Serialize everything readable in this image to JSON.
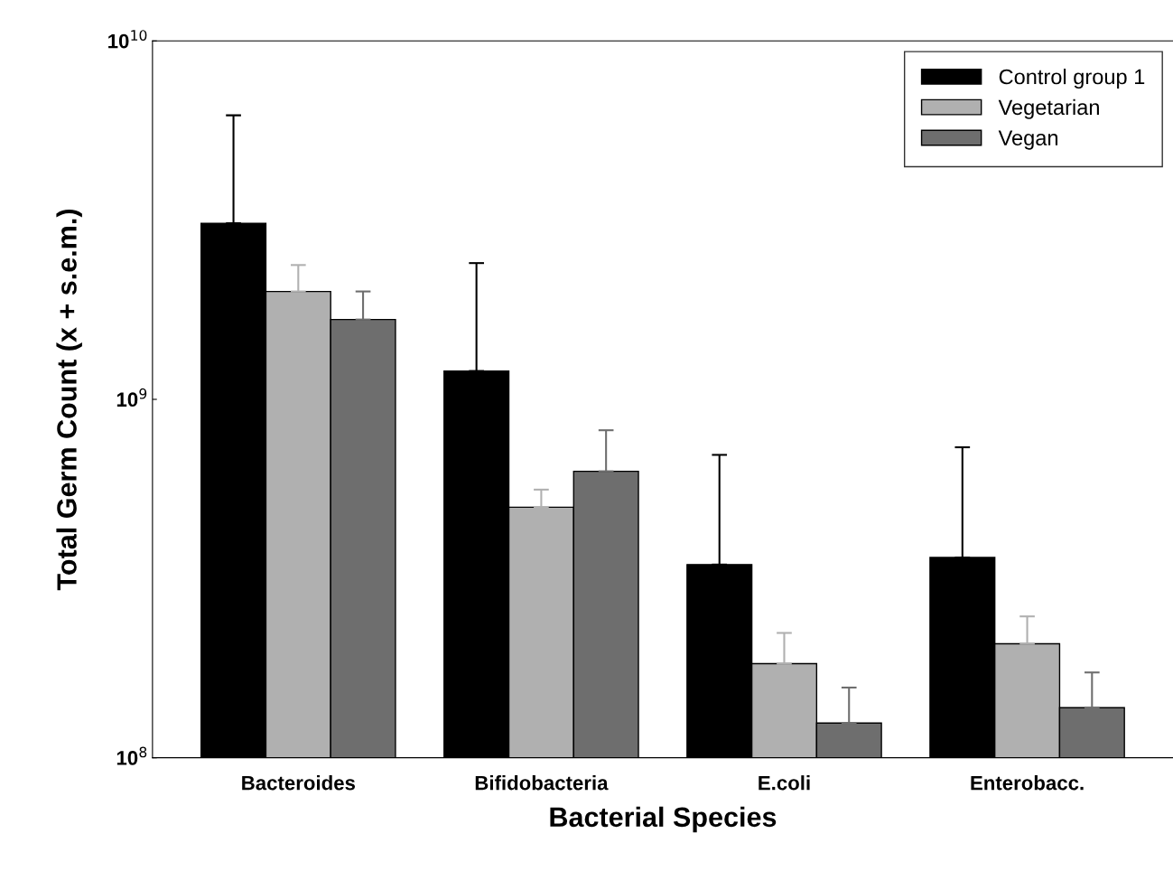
{
  "chart_data": {
    "type": "bar",
    "xlabel": "Bacterial Species",
    "ylabel": "Total Germ Count (x + s.e.m.)",
    "categories": [
      "Bacteroides",
      "Bifidobacteria",
      "E.coli",
      "Enterobacc."
    ],
    "series": [
      {
        "name": "Control group 1",
        "color": "#000000",
        "values": [
          3100000000.0,
          1200000000.0,
          346000000.0,
          362000000.0
        ],
        "errors": [
          [
            3100000000.0,
            6200000000.0
          ],
          [
            1200000000.0,
            2400000000.0
          ],
          [
            346000000.0,
            700000000.0
          ],
          [
            362000000.0,
            735000000.0
          ]
        ]
      },
      {
        "name": "Vegetarian",
        "color": "#b0b0b0",
        "values": [
          2000000000.0,
          500000000.0,
          183000000.0,
          208000000.0
        ],
        "errors": [
          [
            2000000000.0,
            2370000000.0
          ],
          [
            500000000.0,
            560000000.0
          ],
          [
            183000000.0,
            223000000.0
          ],
          [
            208000000.0,
            248000000.0
          ]
        ]
      },
      {
        "name": "Vegan",
        "color": "#6e6e6e",
        "values": [
          1670000000.0,
          630000000.0,
          125000000.0,
          138000000.0
        ],
        "errors": [
          [
            1670000000.0,
            2000000000.0
          ],
          [
            630000000.0,
            820000000.0
          ],
          [
            125000000.0,
            157000000.0
          ],
          [
            138000000.0,
            173000000.0
          ]
        ]
      }
    ],
    "log": "y",
    "ylim": [
      100000000.0,
      10000000000.0
    ],
    "yticks": [
      {
        "value": 100000000.0,
        "label": "10$^{8}$"
      },
      {
        "value": 1000000000.0,
        "label": "10$^{9}$"
      },
      {
        "value": 10000000000.0,
        "label": "10$^{10}$"
      }
    ],
    "legend": "top right",
    "grid": false
  }
}
